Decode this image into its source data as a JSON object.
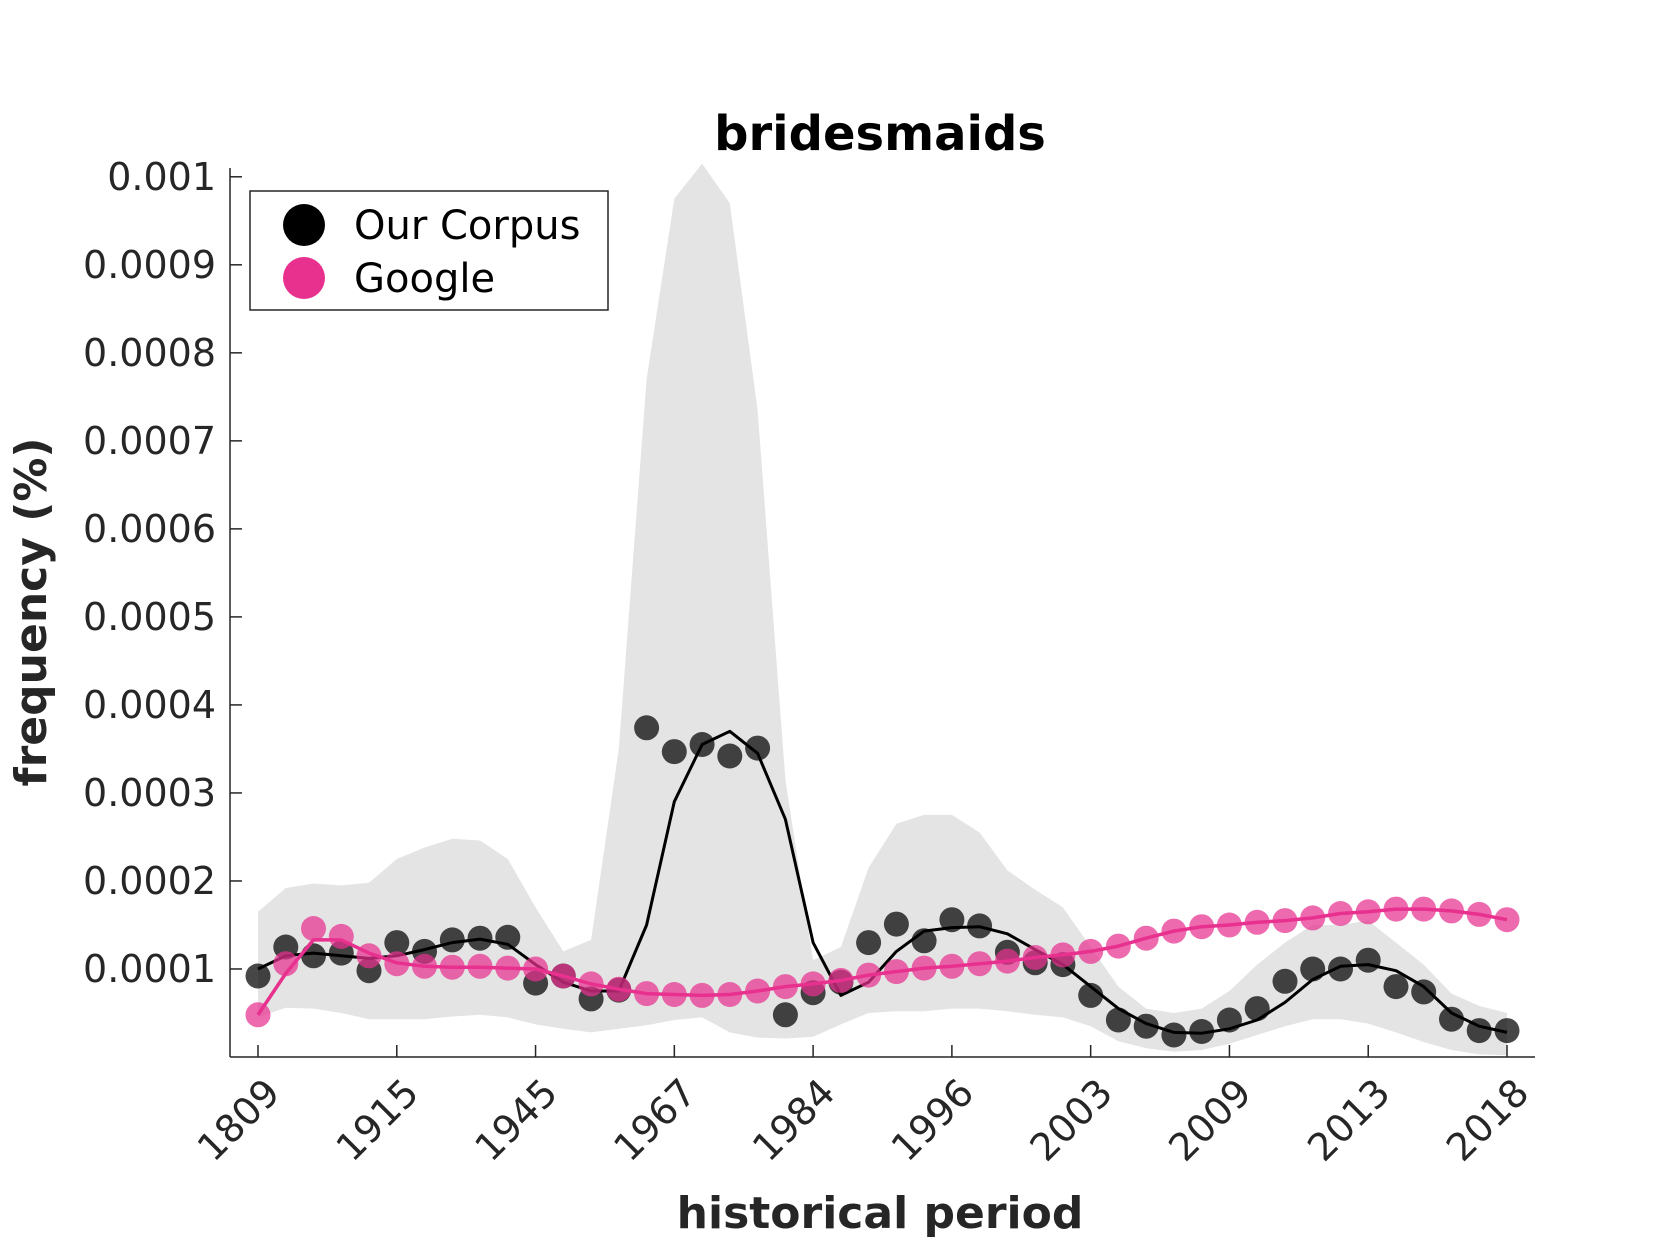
{
  "chart_data": {
    "type": "line",
    "title": "bridesmaids",
    "xlabel": "historical period",
    "ylabel": "frequency (%)",
    "x_tick_labels": [
      "1809",
      "1915",
      "1945",
      "1967",
      "1984",
      "1996",
      "2003",
      "2009",
      "2013",
      "2018"
    ],
    "y_ticks": [
      0.0001,
      0.0002,
      0.0003,
      0.0004,
      0.0005,
      0.0006,
      0.0007,
      0.0008,
      0.0009,
      0.001
    ],
    "y_tick_labels": [
      "0.0001",
      "0.0002",
      "0.0003",
      "0.0004",
      "0.0005",
      "0.0006",
      "0.0007",
      "0.0008",
      "0.0009",
      "0.001"
    ],
    "ylim": [
      0.0,
      0.00101
    ],
    "n_points": 46,
    "legend": {
      "position": "top-left",
      "entries": [
        "Our Corpus",
        "Google"
      ]
    },
    "colors": {
      "corpus": "#000000",
      "google": "#e8308f",
      "band": "#e4e4e4",
      "axis": "#262626"
    },
    "series": [
      {
        "name": "Our Corpus",
        "points": [
          9.2e-05,
          0.000125,
          0.000115,
          0.000118,
          9.8e-05,
          0.00013,
          0.00012,
          0.000133,
          0.000135,
          0.000136,
          8.4e-05,
          9.2e-05,
          6.6e-05,
          7.6e-05,
          0.000374,
          0.000347,
          0.000355,
          0.000342,
          0.000351,
          4.8e-05,
          7.3e-05,
          8.5e-05,
          0.00013,
          0.000151,
          0.000132,
          0.000156,
          0.000149,
          0.000119,
          0.000107,
          0.000105,
          7e-05,
          4.2e-05,
          3.5e-05,
          2.5e-05,
          2.9e-05,
          4.2e-05,
          5.5e-05,
          8.6e-05,
          0.0001,
          0.0001,
          0.00011,
          8e-05,
          7.4e-05,
          4.3e-05,
          3e-05,
          3e-05
        ],
        "trend": [
          0.0001,
          0.000115,
          0.000118,
          0.000115,
          0.000112,
          0.000115,
          0.000122,
          0.00013,
          0.000134,
          0.000128,
          0.000105,
          8.5e-05,
          7.5e-05,
          7.5e-05,
          0.00015,
          0.00029,
          0.000355,
          0.00037,
          0.000345,
          0.00027,
          0.00013,
          7e-05,
          8.5e-05,
          0.00012,
          0.000143,
          0.000147,
          0.000148,
          0.00014,
          0.000122,
          0.000105,
          8e-05,
          5.5e-05,
          3.8e-05,
          2.8e-05,
          2.7e-05,
          3.2e-05,
          4.2e-05,
          6.2e-05,
          8.8e-05,
          0.000103,
          0.000105,
          9.8e-05,
          8e-05,
          5e-05,
          3.5e-05,
          2.8e-05
        ],
        "band_upper": [
          0.000165,
          0.000192,
          0.000197,
          0.000195,
          0.000198,
          0.000225,
          0.000238,
          0.000248,
          0.000246,
          0.000225,
          0.00017,
          0.00012,
          0.000133,
          0.00035,
          0.00077,
          0.000975,
          0.001015,
          0.00097,
          0.000735,
          0.000315,
          0.00011,
          0.000125,
          0.000215,
          0.000265,
          0.000275,
          0.000275,
          0.000255,
          0.000212,
          0.00019,
          0.00017,
          0.000125,
          8e-05,
          5.5e-05,
          5e-05,
          5.5e-05,
          7.5e-05,
          0.000105,
          0.00013,
          0.00015,
          0.00015,
          0.000155,
          0.00013,
          0.000105,
          7.2e-05,
          5.8e-05,
          5e-05
        ],
        "band_lower": [
          4.5e-05,
          5.6e-05,
          5.5e-05,
          5e-05,
          4.3e-05,
          4.3e-05,
          4.3e-05,
          4.6e-05,
          4.8e-05,
          4.5e-05,
          3.7e-05,
          3.2e-05,
          2.8e-05,
          3.2e-05,
          3.6e-05,
          4.2e-05,
          4.5e-05,
          2.8e-05,
          2.2e-05,
          2.1e-05,
          2.3e-05,
          3.7e-05,
          5e-05,
          5.2e-05,
          5.2e-05,
          5.5e-05,
          5.5e-05,
          5.2e-05,
          4.8e-05,
          4.5e-05,
          3.5e-05,
          1.8e-05,
          1e-05,
          6e-06,
          8e-06,
          1.5e-05,
          2.5e-05,
          3.5e-05,
          4.3e-05,
          4.3e-05,
          3.8e-05,
          2.8e-05,
          1.7e-05,
          8e-06,
          3e-06,
          2e-06
        ]
      },
      {
        "name": "Google",
        "points": [
          4.8e-05,
          0.000106,
          0.000146,
          0.000137,
          0.000115,
          0.000106,
          0.000103,
          0.000102,
          0.000103,
          0.000101,
          0.0001,
          9.2e-05,
          8.3e-05,
          7.7e-05,
          7.2e-05,
          7.1e-05,
          7e-05,
          7.1e-05,
          7.5e-05,
          8e-05,
          8.3e-05,
          8.7e-05,
          9.3e-05,
          9.7e-05,
          0.000101,
          0.000103,
          0.000106,
          0.000109,
          0.000113,
          0.000116,
          0.00012,
          0.000126,
          0.000135,
          0.000143,
          0.000148,
          0.00015,
          0.000153,
          0.000155,
          0.000158,
          0.000163,
          0.000165,
          0.000168,
          0.000168,
          0.000166,
          0.000162,
          0.000156
        ],
        "trend": [
          4.8e-05,
          9.5e-05,
          0.000133,
          0.000133,
          0.000118,
          0.000107,
          0.000103,
          0.000102,
          0.000102,
          0.000101,
          0.0001,
          9.2e-05,
          8.3e-05,
          7.7e-05,
          7.2e-05,
          7.1e-05,
          7e-05,
          7.1e-05,
          7.5e-05,
          8e-05,
          8.3e-05,
          8.7e-05,
          9.3e-05,
          9.7e-05,
          0.000101,
          0.000103,
          0.000106,
          0.000109,
          0.000113,
          0.000116,
          0.00012,
          0.000126,
          0.000135,
          0.000143,
          0.000148,
          0.00015,
          0.000153,
          0.000155,
          0.000158,
          0.000163,
          0.000165,
          0.000168,
          0.000168,
          0.000166,
          0.000162,
          0.000156
        ]
      }
    ]
  }
}
